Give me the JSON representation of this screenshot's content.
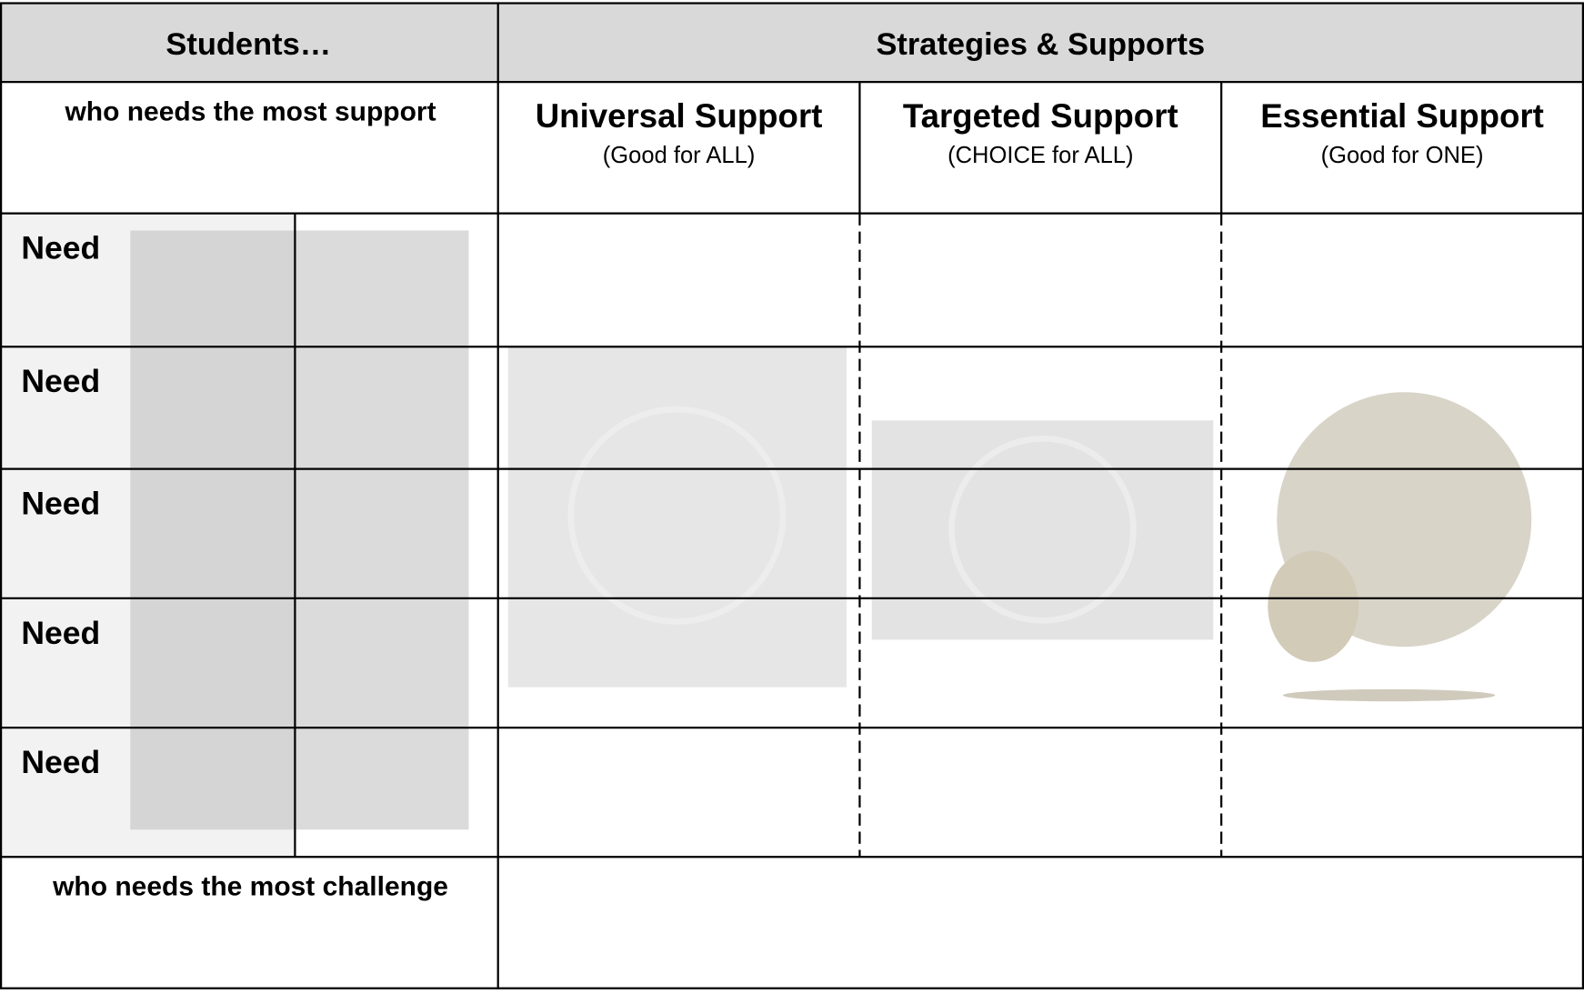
{
  "header": {
    "students": "Students…",
    "strategies": "Strategies & Supports"
  },
  "top_label": "who needs the most support",
  "columns": [
    {
      "title": "Universal Support",
      "subtitle": "(Good for ALL)"
    },
    {
      "title": "Targeted Support",
      "subtitle": "(CHOICE for ALL)"
    },
    {
      "title": "Essential Support",
      "subtitle": "(Good for ONE)"
    }
  ],
  "rows": [
    "Need",
    "Need",
    "Need",
    "Need",
    "Need"
  ],
  "bottom_label": "who needs the most challenge"
}
